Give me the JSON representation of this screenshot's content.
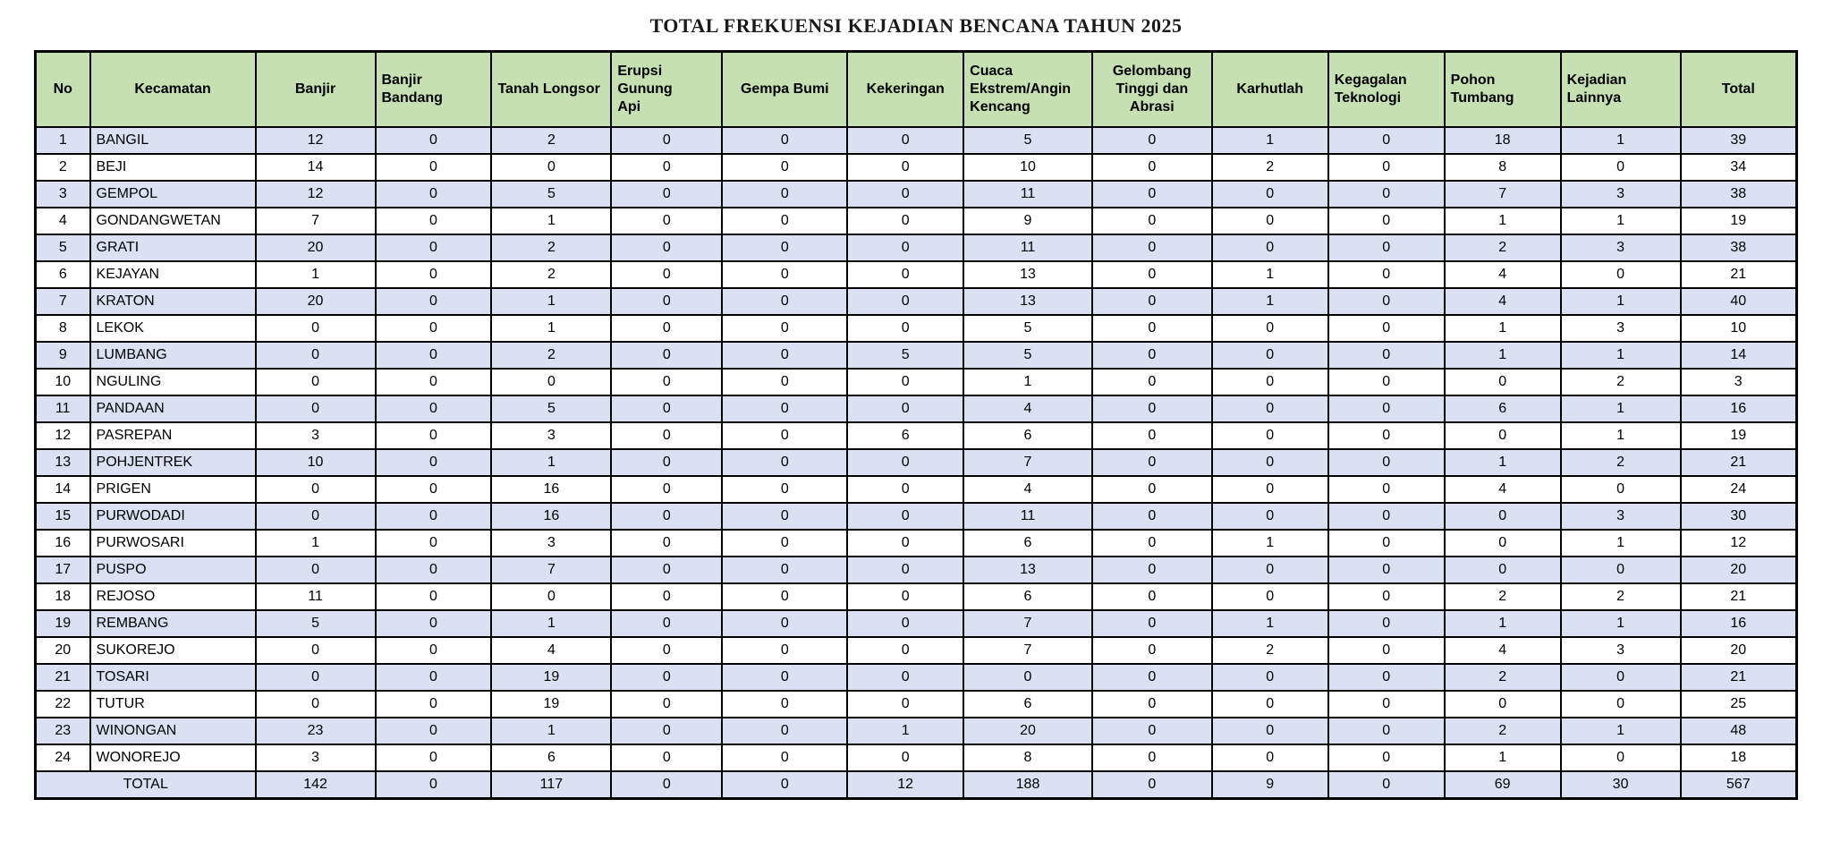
{
  "title": "TOTAL FREKUENSI KEJADIAN BENCANA TAHUN 2025",
  "colors": {
    "header_bg": "#c6e0b4",
    "stripe_bg": "#d9e1f2",
    "border": "#000000"
  },
  "table": {
    "columns": [
      {
        "label": "No"
      },
      {
        "label": "Kecamatan"
      },
      {
        "label": "Banjir"
      },
      {
        "label": "Banjir\nBandang"
      },
      {
        "label": "Tanah Longsor"
      },
      {
        "label": "Erupsi Gunung\nApi"
      },
      {
        "label": "Gempa Bumi"
      },
      {
        "label": "Kekeringan"
      },
      {
        "label": "Cuaca\nEkstrem/Angin\nKencang"
      },
      {
        "label": "Gelombang\nTinggi dan\nAbrasi"
      },
      {
        "label": "Karhutlah"
      },
      {
        "label": "Kegagalan\nTeknologi"
      },
      {
        "label": "Pohon\nTumbang"
      },
      {
        "label": "Kejadian\nLainnya"
      },
      {
        "label": "Total"
      }
    ],
    "rows": [
      {
        "no": 1,
        "kecamatan": "BANGIL",
        "values": [
          12,
          0,
          2,
          0,
          0,
          0,
          5,
          0,
          1,
          0,
          18,
          1
        ],
        "total": 39
      },
      {
        "no": 2,
        "kecamatan": "BEJI",
        "values": [
          14,
          0,
          0,
          0,
          0,
          0,
          10,
          0,
          2,
          0,
          8,
          0
        ],
        "total": 34
      },
      {
        "no": 3,
        "kecamatan": "GEMPOL",
        "values": [
          12,
          0,
          5,
          0,
          0,
          0,
          11,
          0,
          0,
          0,
          7,
          3
        ],
        "total": 38
      },
      {
        "no": 4,
        "kecamatan": "GONDANGWETAN",
        "values": [
          7,
          0,
          1,
          0,
          0,
          0,
          9,
          0,
          0,
          0,
          1,
          1
        ],
        "total": 19
      },
      {
        "no": 5,
        "kecamatan": "GRATI",
        "values": [
          20,
          0,
          2,
          0,
          0,
          0,
          11,
          0,
          0,
          0,
          2,
          3
        ],
        "total": 38
      },
      {
        "no": 6,
        "kecamatan": "KEJAYAN",
        "values": [
          1,
          0,
          2,
          0,
          0,
          0,
          13,
          0,
          1,
          0,
          4,
          0
        ],
        "total": 21
      },
      {
        "no": 7,
        "kecamatan": "KRATON",
        "values": [
          20,
          0,
          1,
          0,
          0,
          0,
          13,
          0,
          1,
          0,
          4,
          1
        ],
        "total": 40
      },
      {
        "no": 8,
        "kecamatan": "LEKOK",
        "values": [
          0,
          0,
          1,
          0,
          0,
          0,
          5,
          0,
          0,
          0,
          1,
          3
        ],
        "total": 10
      },
      {
        "no": 9,
        "kecamatan": "LUMBANG",
        "values": [
          0,
          0,
          2,
          0,
          0,
          5,
          5,
          0,
          0,
          0,
          1,
          1
        ],
        "total": 14
      },
      {
        "no": 10,
        "kecamatan": "NGULING",
        "values": [
          0,
          0,
          0,
          0,
          0,
          0,
          1,
          0,
          0,
          0,
          0,
          2
        ],
        "total": 3
      },
      {
        "no": 11,
        "kecamatan": "PANDAAN",
        "values": [
          0,
          0,
          5,
          0,
          0,
          0,
          4,
          0,
          0,
          0,
          6,
          1
        ],
        "total": 16
      },
      {
        "no": 12,
        "kecamatan": "PASREPAN",
        "values": [
          3,
          0,
          3,
          0,
          0,
          6,
          6,
          0,
          0,
          0,
          0,
          1
        ],
        "total": 19
      },
      {
        "no": 13,
        "kecamatan": "POHJENTREK",
        "values": [
          10,
          0,
          1,
          0,
          0,
          0,
          7,
          0,
          0,
          0,
          1,
          2
        ],
        "total": 21
      },
      {
        "no": 14,
        "kecamatan": "PRIGEN",
        "values": [
          0,
          0,
          16,
          0,
          0,
          0,
          4,
          0,
          0,
          0,
          4,
          0
        ],
        "total": 24
      },
      {
        "no": 15,
        "kecamatan": "PURWODADI",
        "values": [
          0,
          0,
          16,
          0,
          0,
          0,
          11,
          0,
          0,
          0,
          0,
          3
        ],
        "total": 30
      },
      {
        "no": 16,
        "kecamatan": "PURWOSARI",
        "values": [
          1,
          0,
          3,
          0,
          0,
          0,
          6,
          0,
          1,
          0,
          0,
          1
        ],
        "total": 12
      },
      {
        "no": 17,
        "kecamatan": "PUSPO",
        "values": [
          0,
          0,
          7,
          0,
          0,
          0,
          13,
          0,
          0,
          0,
          0,
          0
        ],
        "total": 20
      },
      {
        "no": 18,
        "kecamatan": "REJOSO",
        "values": [
          11,
          0,
          0,
          0,
          0,
          0,
          6,
          0,
          0,
          0,
          2,
          2
        ],
        "total": 21
      },
      {
        "no": 19,
        "kecamatan": "REMBANG",
        "values": [
          5,
          0,
          1,
          0,
          0,
          0,
          7,
          0,
          1,
          0,
          1,
          1
        ],
        "total": 16
      },
      {
        "no": 20,
        "kecamatan": "SUKOREJO",
        "values": [
          0,
          0,
          4,
          0,
          0,
          0,
          7,
          0,
          2,
          0,
          4,
          3
        ],
        "total": 20
      },
      {
        "no": 21,
        "kecamatan": "TOSARI",
        "values": [
          0,
          0,
          19,
          0,
          0,
          0,
          0,
          0,
          0,
          0,
          2,
          0
        ],
        "total": 21
      },
      {
        "no": 22,
        "kecamatan": "TUTUR",
        "values": [
          0,
          0,
          19,
          0,
          0,
          0,
          6,
          0,
          0,
          0,
          0,
          0
        ],
        "total": 25
      },
      {
        "no": 23,
        "kecamatan": "WINONGAN",
        "values": [
          23,
          0,
          1,
          0,
          0,
          1,
          20,
          0,
          0,
          0,
          2,
          1
        ],
        "total": 48
      },
      {
        "no": 24,
        "kecamatan": "WONOREJO",
        "values": [
          3,
          0,
          6,
          0,
          0,
          0,
          8,
          0,
          0,
          0,
          1,
          0
        ],
        "total": 18
      }
    ],
    "total_row": {
      "label": "TOTAL",
      "values": [
        142,
        0,
        117,
        0,
        0,
        12,
        188,
        0,
        9,
        0,
        69,
        30
      ],
      "total": 567
    }
  }
}
